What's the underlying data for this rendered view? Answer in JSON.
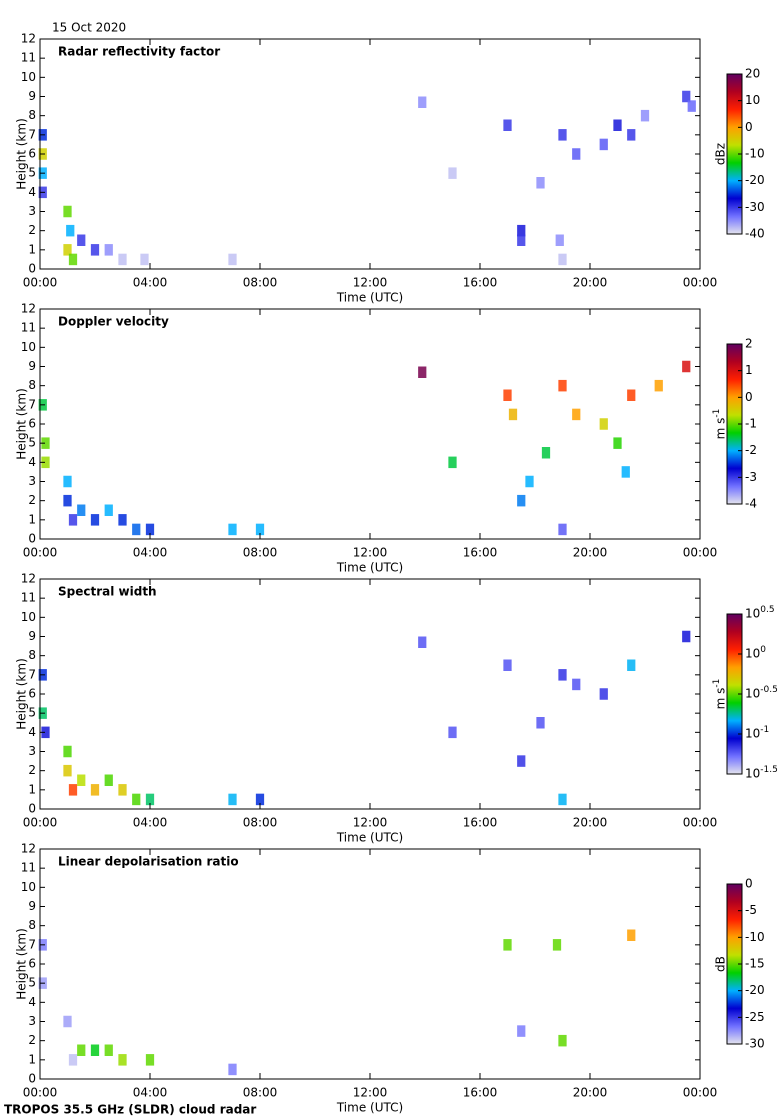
{
  "date": "15 Oct 2020",
  "footer": "TROPOS 35.5 GHz (SLDR) cloud radar",
  "chart_data": [
    {
      "type": "heatmap",
      "title": "Radar reflectivity factor",
      "xlabel": "Time (UTC)",
      "ylabel": "Height (km)",
      "xlim": [
        0,
        24
      ],
      "xticks": [
        {
          "value": 0,
          "label": "00:00"
        },
        {
          "value": 4,
          "label": "04:00"
        },
        {
          "value": 8,
          "label": "08:00"
        },
        {
          "value": 12,
          "label": "12:00"
        },
        {
          "value": 16,
          "label": "16:00"
        },
        {
          "value": 20,
          "label": "20:00"
        },
        {
          "value": 24,
          "label": "00:00"
        }
      ],
      "ylim": [
        0,
        12
      ],
      "yticks": [
        0,
        1,
        2,
        3,
        4,
        5,
        6,
        7,
        8,
        9,
        10,
        11,
        12
      ],
      "colorbar": {
        "label": "dBz",
        "lim": [
          -40,
          20
        ],
        "ticks": [
          -40,
          -30,
          -20,
          -10,
          0,
          10,
          20
        ]
      },
      "colors": [
        "#e4e4ee",
        "#7070ff",
        "#0000d0",
        "#00b0ff",
        "#00d000",
        "#c0e000",
        "#ffa000",
        "#ff2000",
        "#b00020",
        "#600060"
      ],
      "x": [
        0.1,
        0.1,
        0.1,
        0.1,
        1.0,
        1.1,
        1.0,
        1.2,
        1.5,
        2.0,
        2.5,
        3.0,
        3.8,
        7.0,
        13.9,
        15.0,
        17.0,
        17.5,
        17.5,
        18.2,
        19.0,
        19.5,
        20.5,
        21.0,
        21.5,
        22.0,
        23.5,
        23.7,
        19.0,
        18.9
      ],
      "y": [
        6,
        7,
        5,
        4,
        3,
        2,
        1,
        0.5,
        1.5,
        1,
        1,
        0.5,
        0.5,
        0.5,
        8.7,
        5,
        7.5,
        2,
        1.5,
        4.5,
        7,
        6,
        6.5,
        7.5,
        7,
        8,
        9,
        8.5,
        0.5,
        1.5
      ],
      "values": [
        -5,
        -25,
        -20,
        -30,
        -10,
        -20,
        -5,
        -10,
        -30,
        -30,
        -35,
        -38,
        -38,
        -38,
        -35,
        -38,
        -30,
        -28,
        -30,
        -35,
        -30,
        -32,
        -32,
        -28,
        -30,
        -35,
        -30,
        -33,
        -38,
        -35
      ]
    },
    {
      "type": "heatmap",
      "title": "Doppler velocity",
      "xlabel": "Time (UTC)",
      "ylabel": "Height (km)",
      "xlim": [
        0,
        24
      ],
      "xticks": [
        {
          "value": 0,
          "label": "00:00"
        },
        {
          "value": 4,
          "label": "04:00"
        },
        {
          "value": 8,
          "label": "08:00"
        },
        {
          "value": 12,
          "label": "12:00"
        },
        {
          "value": 16,
          "label": "16:00"
        },
        {
          "value": 20,
          "label": "20:00"
        },
        {
          "value": 24,
          "label": "00:00"
        }
      ],
      "ylim": [
        0,
        12
      ],
      "yticks": [
        0,
        1,
        2,
        3,
        4,
        5,
        6,
        7,
        8,
        9,
        10,
        11,
        12
      ],
      "colorbar": {
        "label": "m s",
        "label_sup": "-1",
        "lim": [
          -4,
          2
        ],
        "ticks": [
          -4,
          -3,
          -2,
          -1,
          0,
          1,
          2
        ]
      },
      "colors": [
        "#e4e4ee",
        "#7070ff",
        "#0000d0",
        "#00b0ff",
        "#00d000",
        "#c0e000",
        "#ffa000",
        "#ff2000",
        "#b00020",
        "#600060"
      ],
      "x": [
        0.1,
        0.2,
        0.2,
        1.0,
        1.0,
        1.2,
        1.5,
        2.0,
        2.5,
        3.0,
        3.5,
        4.0,
        7.0,
        8.0,
        13.9,
        17.0,
        17.2,
        15.0,
        17.5,
        17.8,
        18.4,
        19.0,
        19.5,
        20.5,
        21.0,
        21.5,
        21.3,
        22.5,
        23.5,
        19.0
      ],
      "y": [
        7,
        5,
        4,
        3,
        2,
        1,
        1.5,
        1,
        1.5,
        1,
        0.5,
        0.5,
        0.5,
        0.5,
        8.7,
        7.5,
        6.5,
        4,
        2,
        3,
        4.5,
        8,
        6.5,
        6,
        5,
        7.5,
        3.5,
        8,
        9,
        0.5
      ],
      "values": [
        -1.5,
        -1,
        -0.8,
        -2,
        -2.5,
        -3,
        -2.2,
        -2.5,
        -2,
        -2.5,
        -2.3,
        -2.5,
        -2,
        -2,
        1.8,
        0.5,
        -0.2,
        -1.5,
        -2.2,
        -2,
        -1.5,
        0.5,
        0,
        -0.5,
        -1.2,
        0.5,
        -2,
        0,
        1,
        -3.2
      ]
    },
    {
      "type": "heatmap",
      "title": "Spectral width",
      "xlabel": "Time (UTC)",
      "ylabel": "Height (km)",
      "xlim": [
        0,
        24
      ],
      "xticks": [
        {
          "value": 0,
          "label": "00:00"
        },
        {
          "value": 4,
          "label": "04:00"
        },
        {
          "value": 8,
          "label": "08:00"
        },
        {
          "value": 12,
          "label": "12:00"
        },
        {
          "value": 16,
          "label": "16:00"
        },
        {
          "value": 20,
          "label": "20:00"
        },
        {
          "value": 24,
          "label": "00:00"
        }
      ],
      "ylim": [
        0,
        12
      ],
      "yticks": [
        0,
        1,
        2,
        3,
        4,
        5,
        6,
        7,
        8,
        9,
        10,
        11,
        12
      ],
      "colorbar": {
        "label": "m s",
        "label_sup": "-1",
        "scale": "log",
        "lim": [
          0.0316,
          3.162
        ],
        "ticks": [
          {
            "value": 0.0316,
            "label": "10",
            "exp": "-1.5"
          },
          {
            "value": 0.1,
            "label": "10",
            "exp": "-1"
          },
          {
            "value": 0.316,
            "label": "10",
            "exp": "-0.5"
          },
          {
            "value": 1,
            "label": "10",
            "exp": "0"
          },
          {
            "value": 3.162,
            "label": "10",
            "exp": "0.5"
          }
        ]
      },
      "colors": [
        "#e4e4ee",
        "#7070ff",
        "#0000d0",
        "#00b0ff",
        "#00d000",
        "#c0e000",
        "#ffa000",
        "#ff2000",
        "#b00020",
        "#600060"
      ],
      "x": [
        0.1,
        0.1,
        0.2,
        1.0,
        1.0,
        1.2,
        1.5,
        2.0,
        2.5,
        3.0,
        3.5,
        4.0,
        7.0,
        8.0,
        13.9,
        17.0,
        15.0,
        17.5,
        18.2,
        19.0,
        19.5,
        20.5,
        21.5,
        23.5,
        19.0
      ],
      "y": [
        7,
        5,
        4,
        3,
        2,
        1,
        1.5,
        1,
        1.5,
        1,
        0.5,
        0.5,
        0.5,
        0.5,
        8.7,
        7.5,
        4,
        2.5,
        4.5,
        7,
        6.5,
        6,
        7.5,
        9,
        0.5
      ],
      "values": [
        0.1,
        0.2,
        0.08,
        0.3,
        0.5,
        1,
        0.4,
        0.6,
        0.3,
        0.5,
        0.3,
        0.2,
        0.15,
        0.1,
        0.06,
        0.06,
        0.06,
        0.07,
        0.06,
        0.07,
        0.06,
        0.07,
        0.15,
        0.08,
        0.15
      ]
    },
    {
      "type": "heatmap",
      "title": "Linear depolarisation ratio",
      "xlabel": "Time (UTC)",
      "ylabel": "Height (km)",
      "xlim": [
        0,
        24
      ],
      "xticks": [
        {
          "value": 0,
          "label": "00:00"
        },
        {
          "value": 4,
          "label": "04:00"
        },
        {
          "value": 8,
          "label": "08:00"
        },
        {
          "value": 12,
          "label": "12:00"
        },
        {
          "value": 16,
          "label": "16:00"
        },
        {
          "value": 20,
          "label": "20:00"
        },
        {
          "value": 24,
          "label": "00:00"
        }
      ],
      "ylim": [
        0,
        12
      ],
      "yticks": [
        0,
        1,
        2,
        3,
        4,
        5,
        6,
        7,
        8,
        9,
        10,
        11,
        12
      ],
      "colorbar": {
        "label": "dB",
        "lim": [
          -30,
          0
        ],
        "ticks": [
          -30,
          -25,
          -20,
          -15,
          -10,
          -5,
          0
        ]
      },
      "colors": [
        "#e4e4ee",
        "#7070ff",
        "#0000d0",
        "#00b0ff",
        "#00d000",
        "#c0e000",
        "#ffa000",
        "#ff2000",
        "#b00020",
        "#600060"
      ],
      "x": [
        0.1,
        0.1,
        1.0,
        1.2,
        1.5,
        2.0,
        2.5,
        3.0,
        4.0,
        7.0,
        17.5,
        17.0,
        18.8,
        21.5,
        19.0
      ],
      "y": [
        7,
        5,
        3,
        1,
        1.5,
        1.5,
        1.5,
        1,
        1,
        0.5,
        2.5,
        7,
        7,
        7.5,
        2
      ],
      "values": [
        -27,
        -28,
        -28,
        -29,
        -15,
        -17,
        -15,
        -14,
        -15,
        -27,
        -27,
        -15,
        -15,
        -10,
        -15
      ]
    }
  ]
}
